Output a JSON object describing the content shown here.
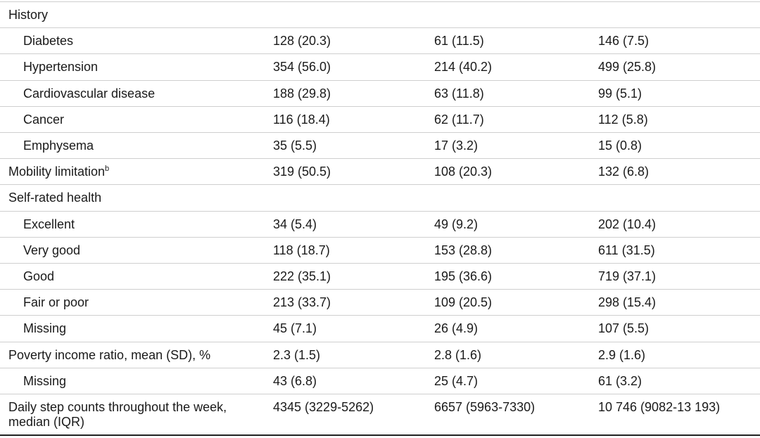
{
  "table": {
    "rows": [
      {
        "label": "History"
      },
      {
        "label": "Diabetes",
        "cells": [
          "128 (20.3)",
          "61 (11.5)",
          "146 (7.5)"
        ]
      },
      {
        "label": "Hypertension",
        "cells": [
          "354 (56.0)",
          "214 (40.2)",
          "499 (25.8)"
        ]
      },
      {
        "label": "Cardiovascular disease",
        "cells": [
          "188 (29.8)",
          "63 (11.8)",
          "99 (5.1)"
        ]
      },
      {
        "label": "Cancer",
        "cells": [
          "116 (18.4)",
          "62 (11.7)",
          "112 (5.8)"
        ]
      },
      {
        "label": "Emphysema",
        "cells": [
          "35 (5.5)",
          "17 (3.2)",
          "15 (0.8)"
        ]
      },
      {
        "label": "Mobility limitation",
        "superscript": "b",
        "cells": [
          "319 (50.5)",
          "108 (20.3)",
          "132 (6.8)"
        ]
      },
      {
        "label": "Self-rated health"
      },
      {
        "label": "Excellent",
        "cells": [
          "34 (5.4)",
          "49 (9.2)",
          "202 (10.4)"
        ]
      },
      {
        "label": "Very good",
        "cells": [
          "118 (18.7)",
          "153 (28.8)",
          "611 (31.5)"
        ]
      },
      {
        "label": "Good",
        "cells": [
          "222 (35.1)",
          "195 (36.6)",
          "719 (37.1)"
        ]
      },
      {
        "label": "Fair or poor",
        "cells": [
          "213 (33.7)",
          "109 (20.5)",
          "298 (15.4)"
        ]
      },
      {
        "label": "Missing",
        "cells": [
          "45 (7.1)",
          "26 (4.9)",
          "107 (5.5)"
        ]
      },
      {
        "label": "Poverty income ratio, mean (SD), %",
        "cells": [
          "2.3 (1.5)",
          "2.8 (1.6)",
          "2.9 (1.6)"
        ]
      },
      {
        "label": "Missing",
        "cells": [
          "43 (6.8)",
          "25 (4.7)",
          "61 (3.2)"
        ]
      },
      {
        "label": "Daily step counts throughout the week, median (IQR)",
        "cells": [
          "4345 (3229-5262)",
          "6657 (5963-7330)",
          "10 746 (9082-13 193)"
        ]
      }
    ]
  }
}
